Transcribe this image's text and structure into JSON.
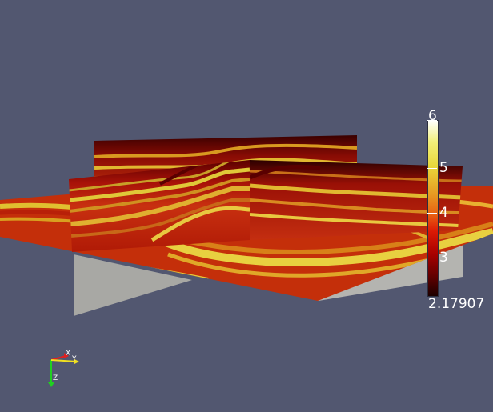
{
  "scene": {
    "background_color": "#525770",
    "colormap": [
      "#1c0000",
      "#a80000",
      "#dc1a05",
      "#e85d12",
      "#e79a22",
      "#e8d83a",
      "#f2f07a",
      "#ffffff"
    ]
  },
  "colorbar": {
    "max_label": "6",
    "tick_5": "5",
    "tick_4": "4",
    "tick_3": "3",
    "min_label": "2.17907"
  },
  "orientation_axes": {
    "x_label": "X",
    "y_label": "Y",
    "z_label": "Z",
    "x_color": "#e02020",
    "y_color": "#f0e020",
    "z_color": "#20d020"
  }
}
